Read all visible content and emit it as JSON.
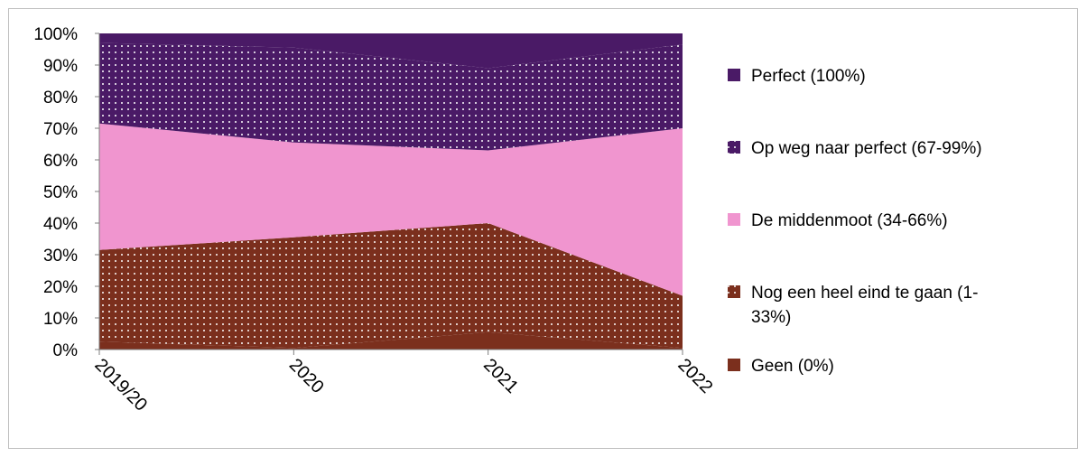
{
  "chart_data": {
    "type": "area",
    "stacked": "percent",
    "title": "",
    "xlabel": "",
    "ylabel": "",
    "ylim": [
      0,
      100
    ],
    "yticks": [
      "0%",
      "10%",
      "20%",
      "30%",
      "40%",
      "50%",
      "60%",
      "70%",
      "80%",
      "90%",
      "100%"
    ],
    "categories": [
      "2019/20",
      "2020",
      "2021",
      "2022"
    ],
    "grid": false,
    "legend_position": "right",
    "series": [
      {
        "name": "Geen (0%)",
        "values": [
          2.5,
          0.5,
          5.5,
          0.5
        ],
        "color": "#7b2f1d",
        "pattern": "solid"
      },
      {
        "name": "Nog een heel eind te gaan (1-33%)",
        "values": [
          29,
          35,
          34.5,
          16.5
        ],
        "color": "#7b2f1d",
        "pattern": "dotted"
      },
      {
        "name": "De middenmoot (34-66%)",
        "values": [
          40,
          30,
          23,
          53
        ],
        "color": "#f095cf",
        "pattern": "solid"
      },
      {
        "name": "Op weg naar perfect (67-99%)",
        "values": [
          25.5,
          30,
          26,
          26.5
        ],
        "color": "#4a1a66",
        "pattern": "dotted"
      },
      {
        "name": "Perfect (100%)",
        "values": [
          3,
          4.5,
          11,
          3.5
        ],
        "color": "#4a1a66",
        "pattern": "solid"
      }
    ],
    "legend": [
      {
        "label": "Perfect (100%)",
        "color": "#4a1a66",
        "pattern": "solid"
      },
      {
        "label": "Op weg naar perfect (67-99%)",
        "color": "#4a1a66",
        "pattern": "dotted"
      },
      {
        "label": "De middenmoot (34-66%)",
        "color": "#f095cf",
        "pattern": "solid"
      },
      {
        "label_lines": [
          "Nog een heel eind te gaan (1-",
          "33%)"
        ],
        "color": "#7b2f1d",
        "pattern": "dotted"
      },
      {
        "label": "Geen (0%)",
        "color": "#7b2f1d",
        "pattern": "solid"
      }
    ]
  }
}
